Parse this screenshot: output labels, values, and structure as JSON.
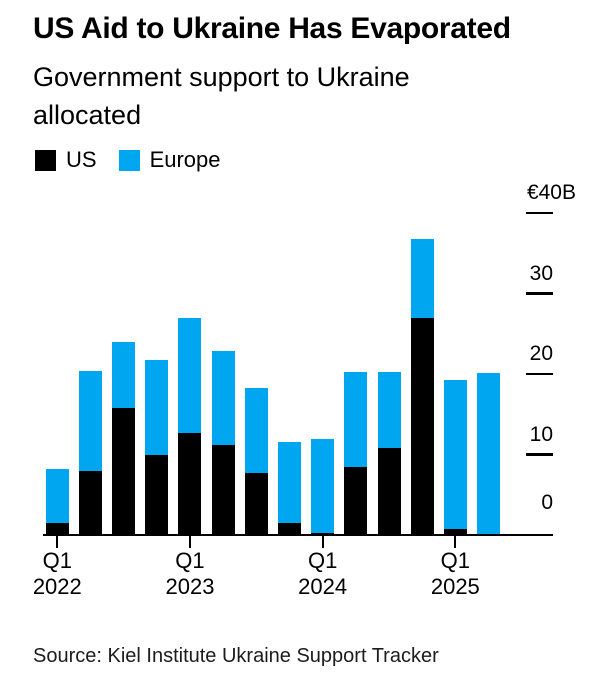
{
  "header": {
    "title": "US Aid to Ukraine Has Evaporated",
    "subtitle": "Government support to Ukraine allocated"
  },
  "legend": [
    {
      "label": "US",
      "color": "#000000"
    },
    {
      "label": "Europe",
      "color": "#00a6f0"
    }
  ],
  "chart_data": {
    "type": "bar",
    "stacked": true,
    "title": "US Aid to Ukraine Has Evaporated",
    "subtitle": "Government support to Ukraine allocated",
    "unit": "billion EUR",
    "currency_prefix": "€",
    "grid": false,
    "legend_position": "top-left",
    "categories": [
      "Q1 2022",
      "Q2 2022",
      "Q3 2022",
      "Q4 2022",
      "Q1 2023",
      "Q2 2023",
      "Q3 2023",
      "Q4 2023",
      "Q1 2024",
      "Q2 2024",
      "Q3 2024",
      "Q4 2024",
      "Q1 2025",
      "Q2 2025"
    ],
    "series": [
      {
        "name": "US",
        "color": "#000000",
        "values": [
          1.5,
          8.0,
          15.8,
          9.9,
          12.7,
          11.2,
          7.7,
          1.5,
          0.3,
          8.4,
          10.8,
          27.0,
          0.8,
          0
        ]
      },
      {
        "name": "Europe",
        "color": "#00a6f0",
        "values": [
          6.7,
          12.4,
          8.2,
          11.9,
          14.2,
          11.7,
          10.6,
          10.0,
          11.6,
          11.9,
          9.5,
          9.8,
          18.4,
          20.1
        ]
      }
    ],
    "y_axis": {
      "side": "right",
      "min": 0,
      "max": 40,
      "ticks": [
        {
          "value": 0,
          "label": "0"
        },
        {
          "value": 10,
          "label": "10"
        },
        {
          "value": 20,
          "label": "20"
        },
        {
          "value": 30,
          "label": "30"
        },
        {
          "value": 40,
          "label": "€40B"
        }
      ]
    },
    "x_ticks": [
      {
        "bar_index": 0,
        "line1": "Q1",
        "line2": "2022"
      },
      {
        "bar_index": 4,
        "line1": "Q1",
        "line2": "2023"
      },
      {
        "bar_index": 8,
        "line1": "Q1",
        "line2": "2024"
      },
      {
        "bar_index": 12,
        "line1": "Q1",
        "line2": "2025"
      }
    ],
    "source": "Source: Kiel Institute Ukraine Support Tracker"
  }
}
